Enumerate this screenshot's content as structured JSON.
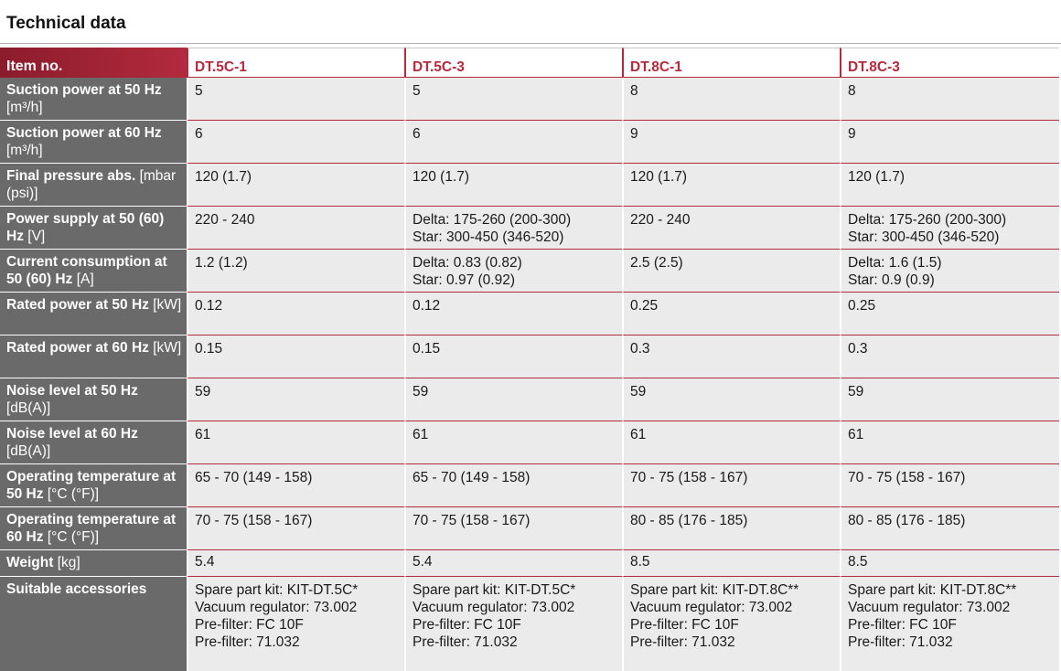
{
  "header": {
    "title": "Technical data"
  },
  "table": {
    "corner_label": "Item no.",
    "models": [
      "DT.5C-1",
      "DT.5C-3",
      "DT.8C-1",
      "DT.8C-3"
    ],
    "rows": [
      {
        "label": "Suction power at 50 Hz",
        "unit": "[m³/h]",
        "values": [
          [
            "5"
          ],
          [
            "5"
          ],
          [
            "8"
          ],
          [
            "8"
          ]
        ]
      },
      {
        "label": "Suction power at 60 Hz",
        "unit": "[m³/h]",
        "values": [
          [
            "6"
          ],
          [
            "6"
          ],
          [
            "9"
          ],
          [
            "9"
          ]
        ]
      },
      {
        "label": "Final pressure abs.",
        "unit": "[mbar (psi)]",
        "values": [
          [
            "120 (1.7)"
          ],
          [
            "120 (1.7)"
          ],
          [
            "120 (1.7)"
          ],
          [
            "120 (1.7)"
          ]
        ]
      },
      {
        "label": "Power supply at 50 (60) Hz",
        "unit": "[V]",
        "values": [
          [
            "220 - 240"
          ],
          [
            "Delta: 175-260 (200-300)",
            "Star: 300-450 (346-520)"
          ],
          [
            "220 - 240"
          ],
          [
            "Delta: 175-260 (200-300)",
            "Star: 300-450 (346-520)"
          ]
        ]
      },
      {
        "label": "Current consumption at 50 (60) Hz",
        "unit": "[A]",
        "values": [
          [
            "1.2 (1.2)"
          ],
          [
            "Delta: 0.83 (0.82)",
            "Star: 0.97 (0.92)"
          ],
          [
            "2.5 (2.5)"
          ],
          [
            "Delta: 1.6 (1.5)",
            "Star: 0.9 (0.9)"
          ]
        ]
      },
      {
        "label": "Rated power at 50 Hz",
        "unit": "[kW]",
        "values": [
          [
            "0.12"
          ],
          [
            "0.12"
          ],
          [
            "0.25"
          ],
          [
            "0.25"
          ]
        ]
      },
      {
        "label": "Rated power at 60 Hz",
        "unit": "[kW]",
        "values": [
          [
            "0.15"
          ],
          [
            "0.15"
          ],
          [
            "0.3"
          ],
          [
            "0.3"
          ]
        ]
      },
      {
        "label": "Noise level at 50 Hz",
        "unit": "[dB(A)]",
        "values": [
          [
            "59"
          ],
          [
            "59"
          ],
          [
            "59"
          ],
          [
            "59"
          ]
        ]
      },
      {
        "label": "Noise level at 60 Hz",
        "unit": "[dB(A)]",
        "values": [
          [
            "61"
          ],
          [
            "61"
          ],
          [
            "61"
          ],
          [
            "61"
          ]
        ]
      },
      {
        "label": "Operating temperature at 50 Hz",
        "unit": "[°C (°F)]",
        "values": [
          [
            "65 - 70 (149 - 158)"
          ],
          [
            "65 - 70 (149 - 158)"
          ],
          [
            "70 - 75 (158 - 167)"
          ],
          [
            "70 - 75 (158 - 167)"
          ]
        ]
      },
      {
        "label": "Operating temperature at 60 Hz",
        "unit": "[°C (°F)]",
        "values": [
          [
            "70 - 75 (158 - 167)"
          ],
          [
            "70 - 75 (158 - 167)"
          ],
          [
            "80 - 85 (176 - 185)"
          ],
          [
            "80 - 85 (176 - 185)"
          ]
        ]
      },
      {
        "label": "Weight",
        "unit": "[kg]",
        "values": [
          [
            "5.4"
          ],
          [
            "5.4"
          ],
          [
            "8.5"
          ],
          [
            "8.5"
          ]
        ]
      },
      {
        "label": "Suitable accessories",
        "unit": "",
        "values": [
          [
            "Spare part kit: KIT-DT.5C*",
            "Vacuum regulator: 73.002",
            "Pre-filter: FC 10F",
            "Pre-filter: 71.032"
          ],
          [
            "Spare part kit: KIT-DT.5C*",
            "Vacuum regulator: 73.002",
            "Pre-filter: FC 10F",
            "Pre-filter: 71.032"
          ],
          [
            "Spare part kit: KIT-DT.8C**",
            "Vacuum regulator: 73.002",
            "Pre-filter: FC 10F",
            "Pre-filter: 71.032"
          ],
          [
            "Spare part kit: KIT-DT.8C**",
            "Vacuum regulator: 73.002",
            "Pre-filter: FC 10F",
            "Pre-filter: 71.032"
          ]
        ]
      }
    ]
  }
}
